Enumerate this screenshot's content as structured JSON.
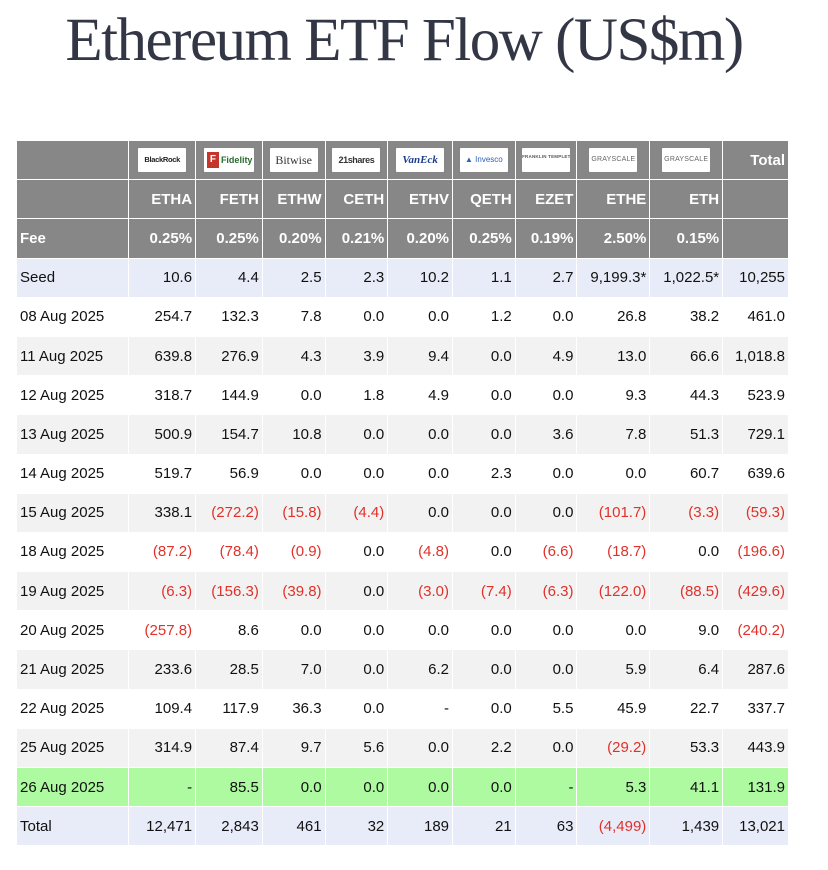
{
  "title": "Ethereum ETF Flow (US$m)",
  "header": {
    "issuers": [
      {
        "name": "BlackRock",
        "icon": "blackrock-logo"
      },
      {
        "name": "Fidelity",
        "icon": "fidelity-logo"
      },
      {
        "name": "Bitwise",
        "icon": "bitwise-logo"
      },
      {
        "name": "21shares",
        "icon": "21shares-logo"
      },
      {
        "name": "VanEck",
        "icon": "vaneck-logo"
      },
      {
        "name": "Invesco",
        "icon": "invesco-logo"
      },
      {
        "name": "FRANKLIN TEMPLETON",
        "icon": "franklin-templeton-logo"
      },
      {
        "name": "GRAYSCALE",
        "icon": "grayscale-logo"
      },
      {
        "name": "GRAYSCALE",
        "icon": "grayscale-logo"
      }
    ],
    "total_label": "Total",
    "tickers": [
      "ETHA",
      "FETH",
      "ETHW",
      "CETH",
      "ETHV",
      "QETH",
      "EZET",
      "ETHE",
      "ETH"
    ],
    "fee_label": "Fee",
    "fees": [
      "0.25%",
      "0.25%",
      "0.20%",
      "0.21%",
      "0.20%",
      "0.25%",
      "0.19%",
      "2.50%",
      "0.15%"
    ]
  },
  "rows": [
    {
      "label": "Seed",
      "values": [
        "10.6",
        "4.4",
        "2.5",
        "2.3",
        "10.2",
        "1.1",
        "2.7",
        "9,199.3*",
        "1,022.5*",
        "10,255"
      ]
    },
    {
      "label": "08 Aug 2025",
      "values": [
        "254.7",
        "132.3",
        "7.8",
        "0.0",
        "0.0",
        "1.2",
        "0.0",
        "26.8",
        "38.2",
        "461.0"
      ]
    },
    {
      "label": "11 Aug 2025",
      "values": [
        "639.8",
        "276.9",
        "4.3",
        "3.9",
        "9.4",
        "0.0",
        "4.9",
        "13.0",
        "66.6",
        "1,018.8"
      ]
    },
    {
      "label": "12 Aug 2025",
      "values": [
        "318.7",
        "144.9",
        "0.0",
        "1.8",
        "4.9",
        "0.0",
        "0.0",
        "9.3",
        "44.3",
        "523.9"
      ]
    },
    {
      "label": "13 Aug 2025",
      "values": [
        "500.9",
        "154.7",
        "10.8",
        "0.0",
        "0.0",
        "0.0",
        "3.6",
        "7.8",
        "51.3",
        "729.1"
      ]
    },
    {
      "label": "14 Aug 2025",
      "values": [
        "519.7",
        "56.9",
        "0.0",
        "0.0",
        "0.0",
        "2.3",
        "0.0",
        "0.0",
        "60.7",
        "639.6"
      ]
    },
    {
      "label": "15 Aug 2025",
      "values": [
        "338.1",
        "(272.2)",
        "(15.8)",
        "(4.4)",
        "0.0",
        "0.0",
        "0.0",
        "(101.7)",
        "(3.3)",
        "(59.3)"
      ]
    },
    {
      "label": "18 Aug 2025",
      "values": [
        "(87.2)",
        "(78.4)",
        "(0.9)",
        "0.0",
        "(4.8)",
        "0.0",
        "(6.6)",
        "(18.7)",
        "0.0",
        "(196.6)"
      ]
    },
    {
      "label": "19 Aug 2025",
      "values": [
        "(6.3)",
        "(156.3)",
        "(39.8)",
        "0.0",
        "(3.0)",
        "(7.4)",
        "(6.3)",
        "(122.0)",
        "(88.5)",
        "(429.6)"
      ]
    },
    {
      "label": "20 Aug 2025",
      "values": [
        "(257.8)",
        "8.6",
        "0.0",
        "0.0",
        "0.0",
        "0.0",
        "0.0",
        "0.0",
        "9.0",
        "(240.2)"
      ]
    },
    {
      "label": "21 Aug 2025",
      "values": [
        "233.6",
        "28.5",
        "7.0",
        "0.0",
        "6.2",
        "0.0",
        "0.0",
        "5.9",
        "6.4",
        "287.6"
      ]
    },
    {
      "label": "22 Aug 2025",
      "values": [
        "109.4",
        "117.9",
        "36.3",
        "0.0",
        "-",
        "0.0",
        "5.5",
        "45.9",
        "22.7",
        "337.7"
      ]
    },
    {
      "label": "25 Aug 2025",
      "values": [
        "314.9",
        "87.4",
        "9.7",
        "5.6",
        "0.0",
        "2.2",
        "0.0",
        "(29.2)",
        "53.3",
        "443.9"
      ]
    },
    {
      "label": "26 Aug 2025",
      "values": [
        "-",
        "85.5",
        "0.0",
        "0.0",
        "0.0",
        "0.0",
        "-",
        "5.3",
        "41.1",
        "131.9"
      ]
    },
    {
      "label": "Total",
      "values": [
        "12,471",
        "2,843",
        "461",
        "32",
        "189",
        "21",
        "63",
        "(4,499)",
        "1,439",
        "13,021"
      ]
    }
  ],
  "colors": {
    "header_bg": "#878787",
    "seed_total_bg": "#e8ecf8",
    "latest_row_bg": "#adfaa1",
    "negative_text": "#e0312a",
    "title_text": "#333645"
  }
}
